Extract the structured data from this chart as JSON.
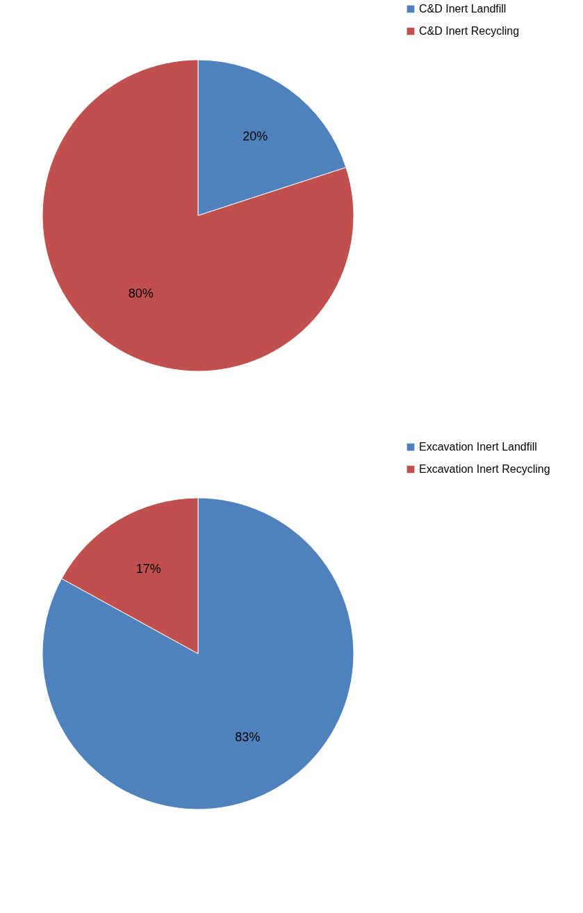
{
  "chart_data": [
    {
      "type": "pie",
      "categories": [
        "C&D Inert Landfill",
        "C&D Inert Recycling"
      ],
      "values": [
        20,
        80
      ],
      "colors": [
        "#4f81bd",
        "#c0504d"
      ],
      "value_labels": [
        "20%",
        "80%"
      ],
      "legend": "right"
    },
    {
      "type": "pie",
      "categories": [
        "Excavation Inert Landfill",
        "Excavation Inert Recycling"
      ],
      "values": [
        83,
        17
      ],
      "colors": [
        "#4f81bd",
        "#c0504d"
      ],
      "value_labels": [
        "83%",
        "17%"
      ],
      "legend": "right"
    }
  ]
}
